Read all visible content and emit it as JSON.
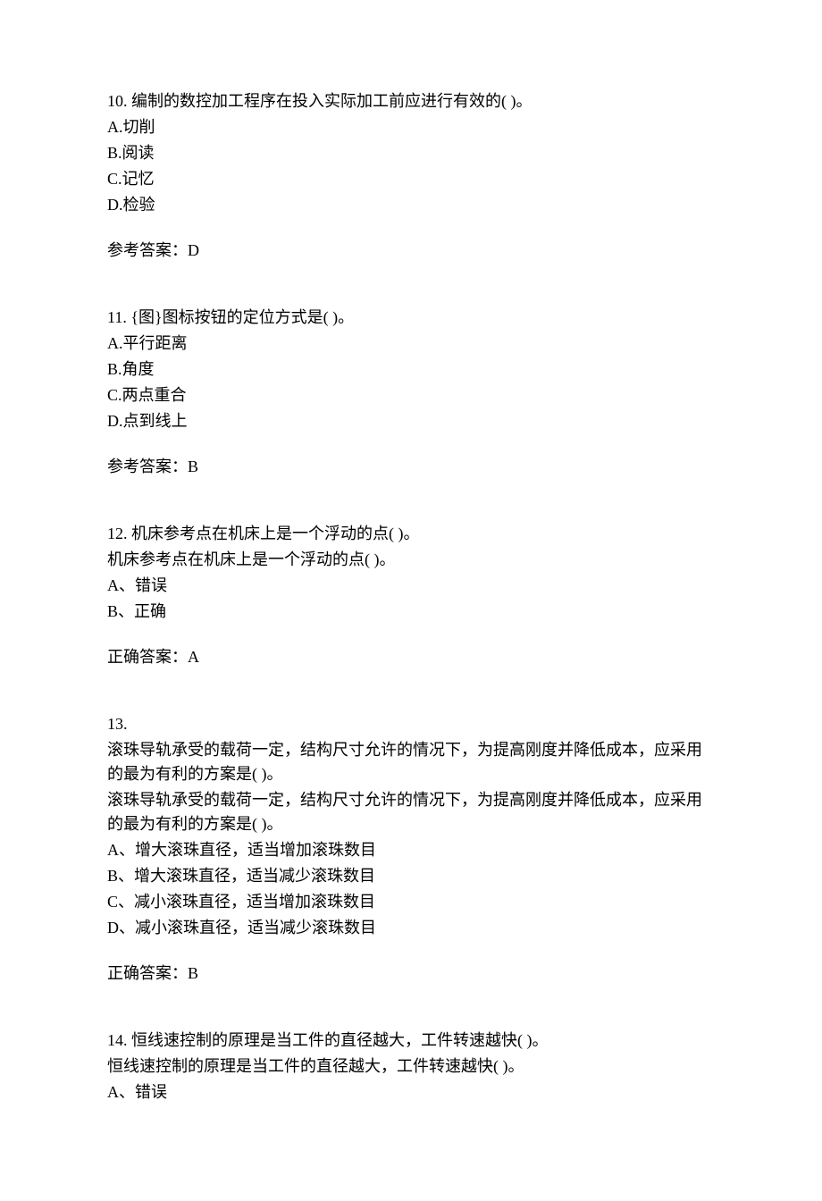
{
  "q10": {
    "question": "10.  编制的数控加工程序在投入实际加工前应进行有效的(   )。",
    "optA": "A.切削",
    "optB": "B.阅读",
    "optC": "C.记忆",
    "optD": "D.检验",
    "answer": "参考答案：D"
  },
  "q11": {
    "question": "11.  {图}图标按钮的定位方式是(   )。",
    "optA": "A.平行距离",
    "optB": "B.角度",
    "optC": "C.两点重合",
    "optD": "D.点到线上",
    "answer": "参考答案：B"
  },
  "q12": {
    "question1": "12.  机床参考点在机床上是一个浮动的点( )。",
    "question2": "机床参考点在机床上是一个浮动的点( )。",
    "optA": "A、错误",
    "optB": "B、正确",
    "answer": "正确答案：A"
  },
  "q13": {
    "num": "13.",
    "question1": "滚珠导轨承受的载荷一定，结构尺寸允许的情况下，为提高刚度并降低成本，应采用的最为有利的方案是( )。",
    "question2": "滚珠导轨承受的载荷一定，结构尺寸允许的情况下，为提高刚度并降低成本，应采用的最为有利的方案是( )。",
    "optA": "A、增大滚珠直径，适当增加滚珠数目",
    "optB": "B、增大滚珠直径，适当减少滚珠数目",
    "optC": "C、减小滚珠直径，适当增加滚珠数目",
    "optD": "D、减小滚珠直径，适当减少滚珠数目",
    "answer": "正确答案：B"
  },
  "q14": {
    "question1": "14.  恒线速控制的原理是当工件的直径越大，工件转速越快( )。",
    "question2": "恒线速控制的原理是当工件的直径越大，工件转速越快( )。",
    "optA": "A、错误"
  }
}
